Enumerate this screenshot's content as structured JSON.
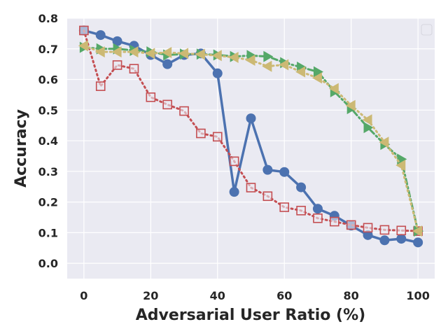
{
  "chart_data": {
    "type": "line",
    "title": "",
    "xlabel": "Adversarial User Ratio (%)",
    "ylabel": "Accuracy",
    "xlim": [
      -5,
      105
    ],
    "ylim": [
      -0.05,
      0.8
    ],
    "xticks": [
      "0",
      "20",
      "40",
      "60",
      "80",
      "100"
    ],
    "yticks": [
      "0.0",
      "0.1",
      "0.2",
      "0.3",
      "0.4",
      "0.5",
      "0.6",
      "0.7",
      "0.8"
    ],
    "grid": true,
    "legend": "top-right (empty)",
    "x": [
      0,
      5,
      10,
      15,
      20,
      25,
      30,
      35,
      40,
      45,
      50,
      55,
      60,
      65,
      70,
      75,
      80,
      85,
      90,
      95,
      100
    ],
    "series": [
      {
        "color": "#4c72b0",
        "marker": "circle",
        "line": "solid",
        "values": [
          0.76,
          0.745,
          0.725,
          0.71,
          0.68,
          0.65,
          0.68,
          0.685,
          0.62,
          0.233,
          0.473,
          0.305,
          0.298,
          0.248,
          0.178,
          0.155,
          0.123,
          0.092,
          0.075,
          0.08,
          0.068
        ]
      },
      {
        "color": "#c44e52",
        "marker": "square-open",
        "line": "dotted",
        "values": [
          0.76,
          0.578,
          0.647,
          0.635,
          0.542,
          0.518,
          0.497,
          0.424,
          0.413,
          0.333,
          0.247,
          0.219,
          0.183,
          0.172,
          0.147,
          0.136,
          0.125,
          0.116,
          0.109,
          0.107,
          0.105
        ]
      },
      {
        "color": "#55a868",
        "marker": "triangle-right",
        "line": "dash-dot",
        "values": [
          0.705,
          0.7,
          0.7,
          0.695,
          0.69,
          0.68,
          0.683,
          0.683,
          0.68,
          0.675,
          0.678,
          0.675,
          0.655,
          0.64,
          0.625,
          0.56,
          0.505,
          0.443,
          0.388,
          0.34,
          0.105
        ]
      },
      {
        "color": "#ccb974",
        "marker": "triangle-left",
        "line": "dotted",
        "values": [
          0.71,
          0.69,
          0.69,
          0.69,
          0.685,
          0.688,
          0.685,
          0.682,
          0.678,
          0.672,
          0.663,
          0.643,
          0.648,
          0.625,
          0.605,
          0.57,
          0.515,
          0.468,
          0.395,
          0.32,
          0.105
        ]
      }
    ]
  }
}
